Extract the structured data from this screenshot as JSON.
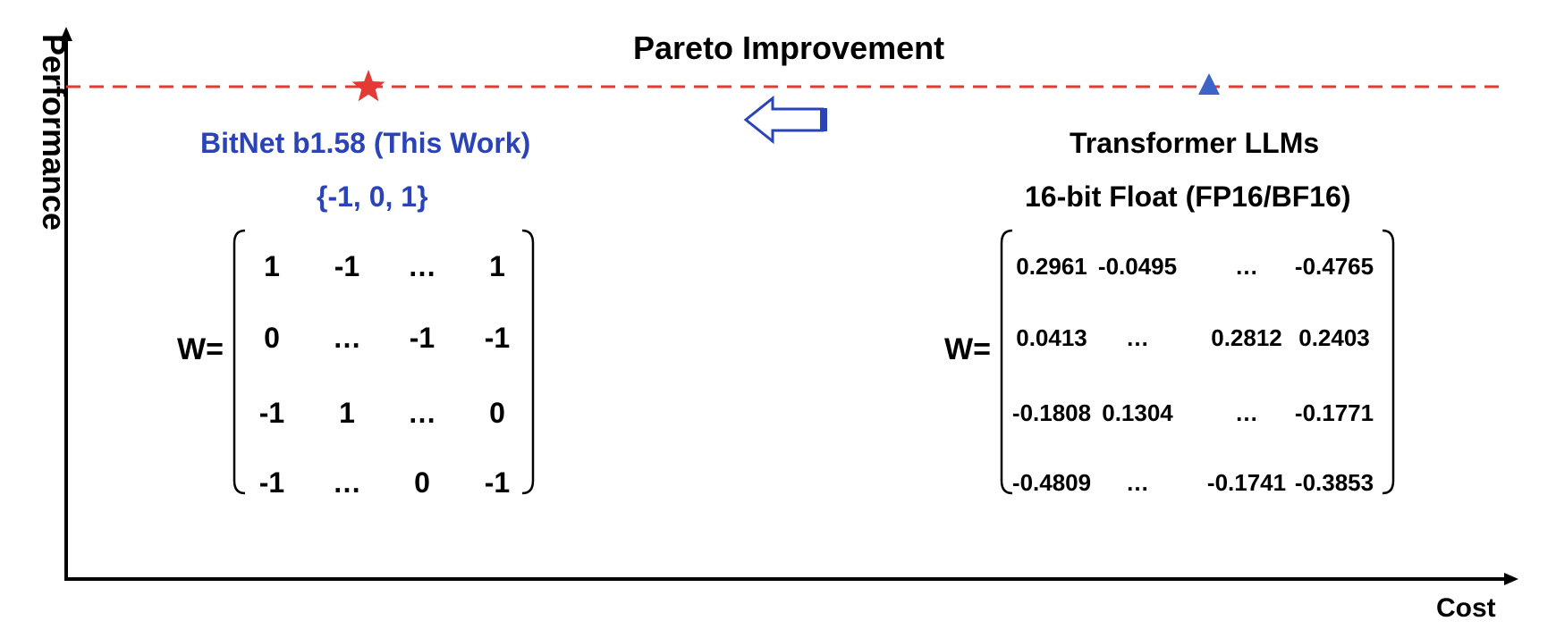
{
  "title": "Pareto Improvement",
  "axes": {
    "y_label": "Performance",
    "x_label": "Cost"
  },
  "markers": {
    "star": {
      "name": "star-marker",
      "color": "#e53935"
    },
    "triangle": {
      "name": "triangle-marker",
      "color": "#3f64c8"
    }
  },
  "pareto_line_color": "#e53935",
  "arrow": {
    "direction": "left",
    "color": "#2a44b8"
  },
  "left": {
    "heading": "BitNet b1.58 (This Work)",
    "value_set": "{-1, 0, 1}",
    "w_label": "W=",
    "matrix": [
      [
        "1",
        "-1",
        "…",
        "1"
      ],
      [
        "0",
        "…",
        "-1",
        "-1"
      ],
      [
        "-1",
        "1",
        "…",
        "0"
      ],
      [
        "-1",
        "…",
        "0",
        "-1"
      ]
    ]
  },
  "right": {
    "heading": "Transformer LLMs",
    "subheading": "16-bit Float (FP16/BF16)",
    "w_label": "W=",
    "matrix": [
      [
        "0.2961",
        "-0.0495",
        "…",
        "-0.4765"
      ],
      [
        "0.0413",
        "…",
        "0.2812",
        "0.2403"
      ],
      [
        "-0.1808",
        "0.1304",
        "…",
        "-0.1771"
      ],
      [
        "-0.4809",
        "…",
        "-0.1741",
        "-0.3853"
      ]
    ]
  }
}
